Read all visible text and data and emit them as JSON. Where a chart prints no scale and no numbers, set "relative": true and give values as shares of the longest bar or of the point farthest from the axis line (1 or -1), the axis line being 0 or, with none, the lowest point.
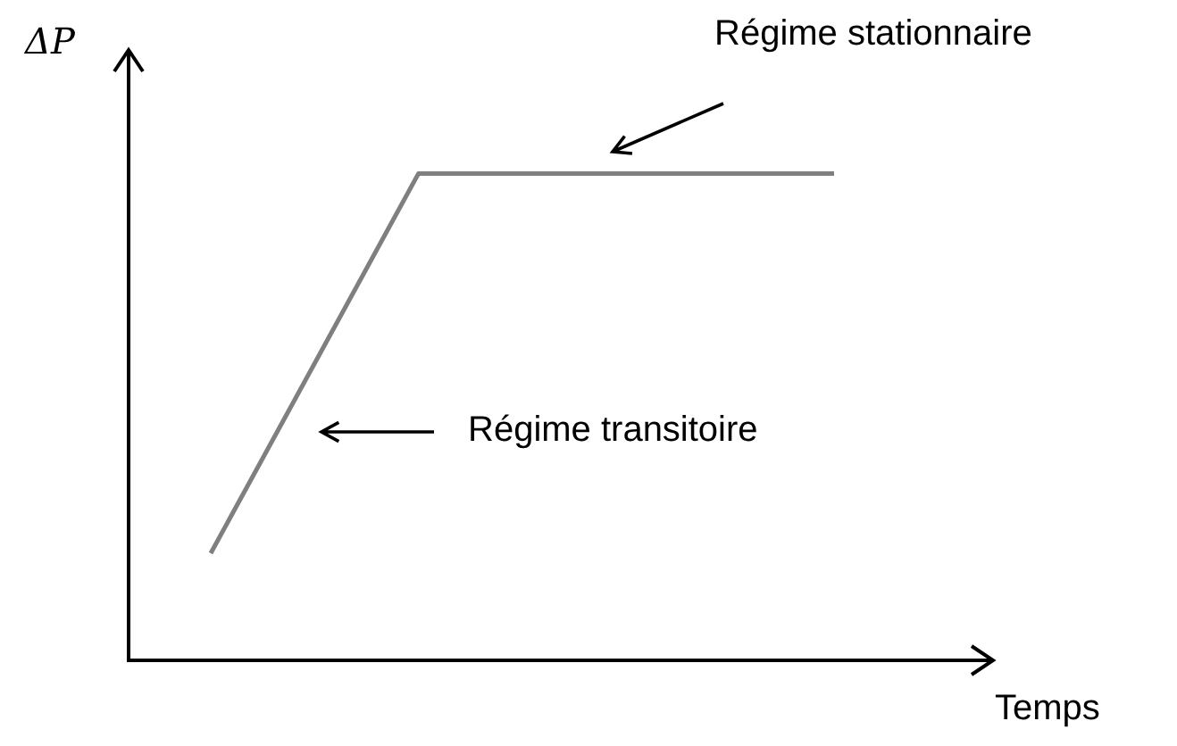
{
  "chart_data": {
    "type": "line",
    "relative": true,
    "xlabel": "Temps",
    "ylabel": "ΔP",
    "categories": [
      null,
      null,
      null,
      null
    ],
    "series": [
      {
        "color": "#7f7f7f",
        "values": [
          0.22,
          1,
          1,
          1
        ]
      }
    ],
    "annotations": [
      "Régime stationnaire",
      "Régime transitoire"
    ],
    "legend": false,
    "marker": "none",
    "line_style": "solid"
  }
}
